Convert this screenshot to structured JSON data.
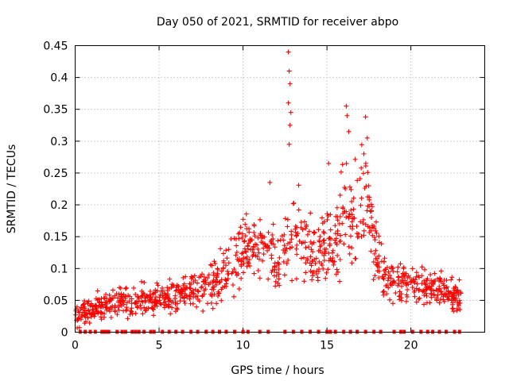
{
  "chart_data": {
    "type": "scatter",
    "title": "Day 050 of 2021, SRMTID for receiver abpo",
    "xlabel": "GPS time / hours",
    "ylabel": "SRMTID / TECUs",
    "xlim": [
      0,
      24.4
    ],
    "ylim": [
      0,
      0.45
    ],
    "x_ticks": [
      "0",
      "5",
      "10",
      "15",
      "20"
    ],
    "x_tick_values": [
      0,
      5,
      10,
      15,
      20
    ],
    "y_ticks": [
      "0",
      "0.05",
      "0.1",
      "0.15",
      "0.2",
      "0.25",
      "0.3",
      "0.35",
      "0.4",
      "0.45"
    ],
    "y_tick_values": [
      0,
      0.05,
      0.1,
      0.15,
      0.2,
      0.25,
      0.3,
      0.35,
      0.4,
      0.45
    ],
    "grid": true,
    "series": [
      {
        "name": "SRMTID",
        "marker": "plus",
        "color": "#ff0000",
        "trend": [
          [
            0.0,
            0.025
          ],
          [
            1.0,
            0.035
          ],
          [
            2.0,
            0.045
          ],
          [
            3.0,
            0.05
          ],
          [
            4.0,
            0.05
          ],
          [
            5.0,
            0.05
          ],
          [
            6.0,
            0.06
          ],
          [
            7.0,
            0.065
          ],
          [
            8.0,
            0.07
          ],
          [
            9.0,
            0.1
          ],
          [
            10.0,
            0.13
          ],
          [
            11.0,
            0.14
          ],
          [
            12.0,
            0.11
          ],
          [
            12.7,
            0.16
          ],
          [
            13.5,
            0.14
          ],
          [
            14.5,
            0.12
          ],
          [
            15.0,
            0.14
          ],
          [
            15.5,
            0.12
          ],
          [
            16.0,
            0.2
          ],
          [
            16.5,
            0.17
          ],
          [
            17.0,
            0.19
          ],
          [
            17.5,
            0.2
          ],
          [
            18.0,
            0.12
          ],
          [
            18.5,
            0.08
          ],
          [
            19.0,
            0.08
          ],
          [
            20.0,
            0.08
          ],
          [
            21.0,
            0.07
          ],
          [
            22.0,
            0.07
          ],
          [
            23.0,
            0.05
          ]
        ],
        "spread": [
          [
            0.0,
            0.015
          ],
          [
            5.0,
            0.02
          ],
          [
            8.0,
            0.025
          ],
          [
            10.0,
            0.04
          ],
          [
            12.0,
            0.04
          ],
          [
            13.0,
            0.06
          ],
          [
            15.0,
            0.05
          ],
          [
            16.5,
            0.07
          ],
          [
            17.5,
            0.06
          ],
          [
            18.5,
            0.03
          ],
          [
            23.0,
            0.02
          ]
        ],
        "peaks": [
          {
            "x": 12.7,
            "y": 0.44
          },
          {
            "x": 12.75,
            "y": 0.41
          },
          {
            "x": 12.8,
            "y": 0.39
          },
          {
            "x": 12.7,
            "y": 0.36
          },
          {
            "x": 12.85,
            "y": 0.345
          },
          {
            "x": 12.8,
            "y": 0.325
          },
          {
            "x": 12.75,
            "y": 0.295
          },
          {
            "x": 16.15,
            "y": 0.355
          },
          {
            "x": 16.2,
            "y": 0.34
          },
          {
            "x": 17.3,
            "y": 0.338
          },
          {
            "x": 16.3,
            "y": 0.315
          },
          {
            "x": 17.4,
            "y": 0.305
          },
          {
            "x": 15.1,
            "y": 0.265
          },
          {
            "x": 17.2,
            "y": 0.28
          },
          {
            "x": 11.6,
            "y": 0.235
          }
        ],
        "num_points": 1100,
        "zero_points_x": [
          0.3,
          0.6,
          0.9,
          1.2,
          1.6,
          1.7,
          1.8,
          1.9,
          2.0,
          2.5,
          2.8,
          3.0,
          3.4,
          3.6,
          3.8,
          4.1,
          4.5,
          4.7,
          5.2,
          5.6,
          6.0,
          6.4,
          6.9,
          7.3,
          7.8,
          8.2,
          8.6,
          9.0,
          9.5,
          10.0,
          10.3,
          11.0,
          11.5,
          12.5,
          13.0,
          13.5,
          14.0,
          14.5,
          15.0,
          15.2,
          15.5,
          16.0,
          16.4,
          16.8,
          17.3,
          17.8,
          18.2,
          19.0,
          19.4,
          19.6,
          20.1,
          20.6,
          21.0,
          21.3,
          21.7,
          22.1,
          22.6,
          22.9
        ]
      }
    ]
  }
}
